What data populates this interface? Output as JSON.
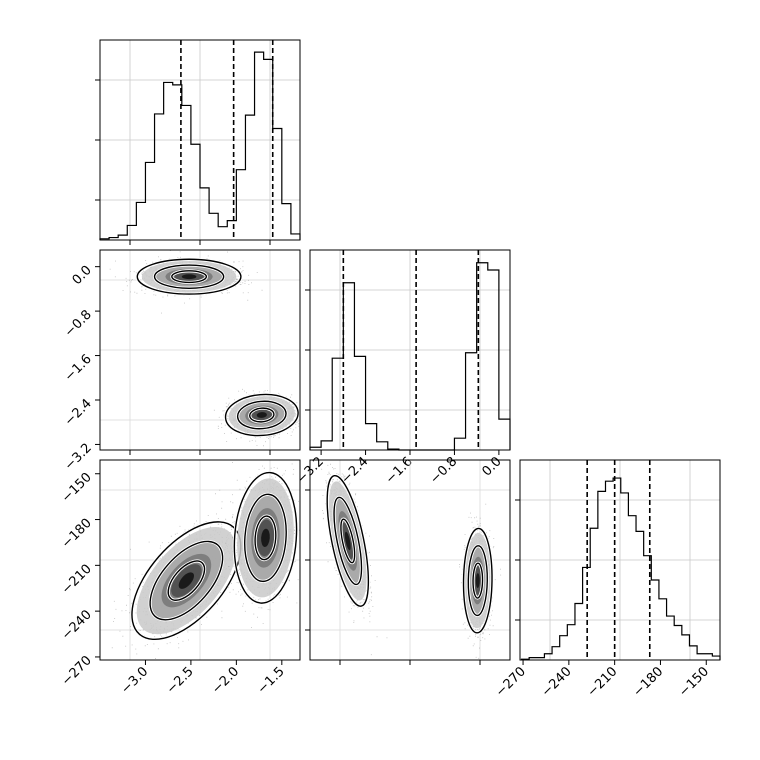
{
  "chart_data": [
    {
      "type": "histogram",
      "panel": "param-1-marginal",
      "bins": [
        -3.5,
        -3.4,
        -3.3,
        -3.2,
        -3.1,
        -3.0,
        -2.9,
        -2.8,
        -2.7,
        -2.6,
        -2.5,
        -2.4,
        -2.3,
        -2.2,
        -2.1,
        -2.0,
        -1.9,
        -1.8,
        -1.7,
        -1.6,
        -1.5,
        -1.4,
        -1.3
      ],
      "counts": [
        1,
        2,
        4,
        12,
        31,
        64,
        104,
        130,
        128,
        111,
        79,
        43,
        22,
        11,
        16,
        58,
        103,
        155,
        149,
        92,
        30,
        5
      ],
      "xlim": [
        -3.5,
        -1.3
      ],
      "ylim": [
        0,
        165
      ],
      "quantiles": [
        -2.61,
        -2.03,
        -1.6
      ],
      "grid": true
    },
    {
      "type": "histogram",
      "panel": "param-2-marginal",
      "bins": [
        -3.4,
        -3.2,
        -3.0,
        -2.8,
        -2.6,
        -2.4,
        -2.2,
        -2.0,
        -1.8,
        -1.6,
        -1.4,
        -1.2,
        -1.0,
        -0.8,
        -0.6,
        -0.4,
        -0.2,
        0.0,
        0.2
      ],
      "counts": [
        3,
        10,
        101,
        184,
        103,
        29,
        9,
        1,
        0,
        0,
        0,
        0,
        0,
        13,
        107,
        206,
        198,
        34
      ],
      "xlim": [
        -3.4,
        0.2
      ],
      "ylim": [
        0,
        220
      ],
      "quantiles": [
        -2.8,
        -1.49,
        -0.37
      ],
      "grid": true,
      "x_ticks": [
        -3.2,
        -2.4,
        -1.6,
        -0.8,
        0.0
      ],
      "x_tick_labels": [
        "−3.2",
        "−2.4",
        "−1.6",
        "−0.8",
        "0.0"
      ]
    },
    {
      "type": "histogram",
      "panel": "param-3-marginal",
      "bins": [
        -271,
        -266,
        -261,
        -256,
        -251,
        -246,
        -241,
        -236,
        -231,
        -226,
        -221,
        -216,
        -211,
        -206,
        -201,
        -196,
        -191,
        -186,
        -181,
        -176,
        -171,
        -166,
        -161,
        -156,
        -151,
        -146,
        -141
      ],
      "counts": [
        1,
        3,
        3,
        8,
        17,
        31,
        45,
        72,
        118,
        168,
        215,
        228,
        232,
        213,
        184,
        164,
        133,
        102,
        78,
        56,
        44,
        32,
        18,
        8,
        8,
        5
      ],
      "xlim": [
        -272,
        -141
      ],
      "ylim": [
        0,
        255
      ],
      "quantiles": [
        -228,
        -210,
        -187
      ],
      "grid": true,
      "x_ticks": [
        -270,
        -240,
        -210,
        -180,
        -150
      ],
      "x_tick_labels": [
        "−270",
        "−240",
        "−210",
        "−180",
        "−150"
      ]
    },
    {
      "type": "scatter-density",
      "panel": "param-2-vs-param-1",
      "xlim": [
        -3.5,
        -1.3
      ],
      "ylim": [
        -3.3,
        0.3
      ],
      "y_ticks": [
        0.0,
        -0.8,
        -1.6,
        -2.4,
        -3.2
      ],
      "y_tick_labels": [
        "0.0",
        "−0.8",
        "−1.6",
        "−2.4",
        "−3.2"
      ],
      "clusters": [
        {
          "cx": -2.52,
          "cy": -0.18,
          "sx": 0.2,
          "sy": 0.11,
          "rho": 0.0,
          "contours": [
            1.0,
            2.0,
            3.0
          ]
        },
        {
          "cx": -1.72,
          "cy": -2.67,
          "sx": 0.14,
          "sy": 0.13,
          "rho": 0.1,
          "contours": [
            1.0,
            2.0,
            3.0
          ]
        }
      ]
    },
    {
      "type": "scatter-density",
      "panel": "param-3-vs-param-1",
      "xlim": [
        -3.5,
        -1.3
      ],
      "ylim": [
        -272,
        -141
      ],
      "x_ticks": [
        -3.0,
        -2.5,
        -2.0,
        -1.5
      ],
      "x_tick_labels": [
        "−3.0",
        "−2.5",
        "−2.0",
        "−1.5"
      ],
      "y_ticks": [
        -150,
        -180,
        -210,
        -240,
        -270
      ],
      "y_tick_labels": [
        "−150",
        "−180",
        "−210",
        "−240",
        "−270"
      ],
      "clusters": [
        {
          "cx": -2.55,
          "cy": -220,
          "sx": 0.21,
          "sy": 13.5,
          "rho": 0.58,
          "contours": [
            1.0,
            2.0,
            3.0
          ]
        },
        {
          "cx": -1.68,
          "cy": -192,
          "sx": 0.12,
          "sy": 15,
          "rho": 0.12,
          "contours": [
            1.0,
            2.0,
            3.0
          ]
        }
      ]
    },
    {
      "type": "scatter-density",
      "panel": "param-3-vs-param-2",
      "xlim": [
        -3.4,
        0.2
      ],
      "ylim": [
        -272,
        -141
      ],
      "clusters": [
        {
          "cx": -2.72,
          "cy": -194,
          "sx": 0.13,
          "sy": 15,
          "rho": -0.62,
          "contours": [
            1.0,
            2.0,
            3.0
          ]
        },
        {
          "cx": -0.38,
          "cy": -220,
          "sx": 0.09,
          "sy": 12,
          "rho": 0.05,
          "contours": [
            1.0,
            2.0,
            3.0
          ]
        }
      ]
    }
  ]
}
